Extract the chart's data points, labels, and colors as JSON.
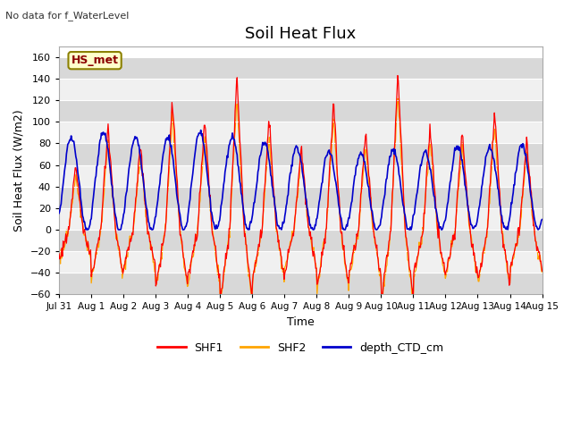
{
  "title": "Soil Heat Flux",
  "ylabel": "Soil Heat Flux (W/m2)",
  "xlabel": "Time",
  "top_left_text": "No data for f_WaterLevel",
  "annotation_box": "HS_met",
  "ylim": [
    -60,
    170
  ],
  "yticks": [
    -60,
    -40,
    -20,
    0,
    20,
    40,
    60,
    80,
    100,
    120,
    140,
    160
  ],
  "xtick_labels": [
    "Jul 31",
    "Aug 1",
    "Aug 2",
    "Aug 3",
    "Aug 4",
    "Aug 5",
    "Aug 6",
    "Aug 7",
    "Aug 8",
    "Aug 9",
    "Aug 10",
    "Aug 11",
    "Aug 12",
    "Aug 13",
    "Aug 14",
    "Aug 15"
  ],
  "shf1_color": "#ff0000",
  "shf2_color": "#ffa500",
  "depth_color": "#0000cc",
  "bg_color_light": "#f0f0f0",
  "bg_color_dark": "#d8d8d8",
  "legend_entries": [
    "SHF1",
    "SHF2",
    "depth_CTD_cm"
  ],
  "n_days": 15,
  "pts_per_day": 48,
  "figsize": [
    6.4,
    4.8
  ],
  "dpi": 100
}
